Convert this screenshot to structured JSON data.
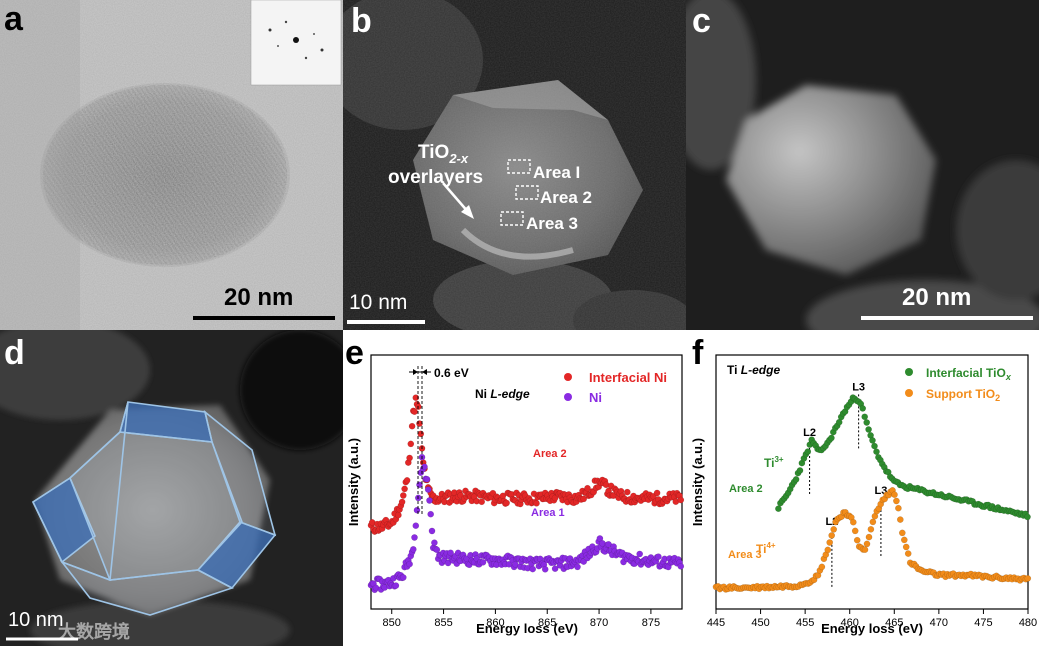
{
  "figure": {
    "panel_labels": {
      "a": "a",
      "b": "b",
      "c": "c",
      "d": "d",
      "e": "e",
      "f": "f"
    },
    "panel_a": {
      "scale_bar": "20 nm"
    },
    "panel_b": {
      "scale_bar": "10 nm",
      "overlayer_label_main": "TiO",
      "overlayer_label_sub": "2-x",
      "overlayer_label_line2": "overlayers",
      "area_labels": [
        "Area I",
        "Area 2",
        "Area 3"
      ]
    },
    "panel_c": {
      "scale_bar": "20 nm"
    },
    "panel_d": {
      "scale_bar": "10 nm",
      "watermark": "大数跨境"
    }
  },
  "chart_data": [
    {
      "panel": "e",
      "type": "scatter",
      "title": "Ni L-edge",
      "xlabel": "Energy loss (eV)",
      "ylabel": "Intensity (a.u.)",
      "xlim": [
        848,
        878
      ],
      "xticks": [
        850,
        855,
        860,
        865,
        870,
        875
      ],
      "shift_annotation": "0.6 eV",
      "series": [
        {
          "name": "Interfacial Ni",
          "area": "Area 2",
          "color": "#e32727",
          "x": [
            848,
            849,
            850,
            851,
            851.5,
            852,
            852.3,
            852.6,
            853,
            853.5,
            854,
            855,
            856,
            858,
            860,
            862,
            864,
            866,
            868,
            869,
            870,
            871,
            872,
            874,
            876,
            878
          ],
          "y": [
            2.0,
            2.0,
            2.1,
            2.6,
            3.2,
            4.6,
            5.1,
            4.8,
            3.6,
            2.9,
            2.7,
            2.7,
            2.75,
            2.75,
            2.7,
            2.7,
            2.7,
            2.75,
            2.7,
            2.85,
            3.1,
            2.9,
            2.75,
            2.7,
            2.7,
            2.7
          ]
        },
        {
          "name": "Ni",
          "area": "Area 1",
          "color": "#8a2be2",
          "x": [
            848,
            849,
            850,
            851,
            852,
            852.5,
            852.9,
            853.2,
            853.6,
            854,
            854.5,
            855,
            856,
            858,
            860,
            862,
            864,
            866,
            868,
            869,
            870,
            871,
            872,
            874,
            876,
            878
          ],
          "y": [
            0.6,
            0.6,
            0.65,
            0.8,
            1.4,
            2.6,
            3.6,
            3.4,
            2.8,
            1.6,
            1.3,
            1.25,
            1.25,
            1.2,
            1.2,
            1.15,
            1.1,
            1.1,
            1.15,
            1.35,
            1.6,
            1.45,
            1.3,
            1.2,
            1.15,
            1.1
          ]
        }
      ]
    },
    {
      "panel": "f",
      "type": "scatter",
      "title": "Ti L-edge",
      "xlabel": "Energy loss (eV)",
      "ylabel": "Intensity (a.u.)",
      "xlim": [
        445,
        480
      ],
      "xticks": [
        445,
        450,
        455,
        460,
        465,
        470,
        475,
        480
      ],
      "series": [
        {
          "name": "Interfacial TiOx",
          "area": "Area 2",
          "oxidation": "Ti3+",
          "color": "#2e8b2e",
          "x": [
            452,
            453,
            454,
            455,
            455.8,
            456.5,
            457.5,
            458.5,
            459.5,
            460.5,
            461.2,
            462,
            463,
            464,
            465,
            466,
            468,
            470,
            472,
            474,
            476,
            478,
            480
          ],
          "y": [
            2.2,
            2.5,
            2.9,
            3.4,
            3.8,
            3.5,
            3.7,
            4.1,
            4.5,
            4.8,
            4.7,
            4.1,
            3.5,
            3.1,
            2.8,
            2.7,
            2.6,
            2.5,
            2.4,
            2.3,
            2.2,
            2.1,
            2.0
          ]
        },
        {
          "name": "Support TiO2",
          "area": "Area 3",
          "oxidation": "Ti4+",
          "color": "#f28c1a",
          "x": [
            445,
            448,
            451,
            454,
            455.5,
            456.5,
            457.5,
            458.5,
            459.5,
            460.3,
            461,
            461.8,
            462.8,
            463.8,
            464.8,
            465.4,
            466,
            466.8,
            468,
            470,
            473,
            476,
            480
          ],
          "y": [
            0.3,
            0.3,
            0.32,
            0.35,
            0.45,
            0.6,
            1.2,
            1.9,
            2.1,
            1.9,
            1.3,
            1.2,
            2.0,
            2.4,
            2.6,
            2.3,
            1.5,
            0.9,
            0.7,
            0.6,
            0.6,
            0.55,
            0.5
          ]
        }
      ],
      "markers": [
        {
          "label": "L2",
          "x": 455.5,
          "curve": "Interfacial TiOx"
        },
        {
          "label": "L3",
          "x": 461,
          "curve": "Interfacial TiOx"
        },
        {
          "label": "L2",
          "x": 458,
          "curve": "Support TiO2"
        },
        {
          "label": "L3",
          "x": 463.5,
          "curve": "Support TiO2"
        }
      ]
    }
  ],
  "chart_text": {
    "e": {
      "title_main": "Ni ",
      "title_italic": "L-edge",
      "legend": [
        "Interfacial Ni",
        "Ni"
      ],
      "area_labels": [
        "Area 2",
        "Area 1"
      ],
      "shift": "0.6 eV",
      "xlabel": "Energy loss (eV)",
      "ylabel": "Intensity (a.u.)",
      "xticks": [
        "850",
        "855",
        "860",
        "865",
        "870",
        "875"
      ]
    },
    "f": {
      "title_main": "Ti ",
      "title_italic": "L-edge",
      "legend_1_main": "Interfacial TiO",
      "legend_1_sub": "x",
      "legend_2_main": "Support TiO",
      "legend_2_sub": "2",
      "area_labels": [
        "Area 2",
        "Area 3"
      ],
      "ti3": "Ti",
      "ti3_sup": "3+",
      "ti4": "Ti",
      "ti4_sup": "4+",
      "markers": [
        "L2",
        "L3",
        "L2",
        "L3"
      ],
      "xlabel": "Energy loss (eV)",
      "ylabel": "Intensity (a.u.)",
      "xticks": [
        "445",
        "450",
        "455",
        "460",
        "465",
        "470",
        "475",
        "480"
      ]
    }
  }
}
